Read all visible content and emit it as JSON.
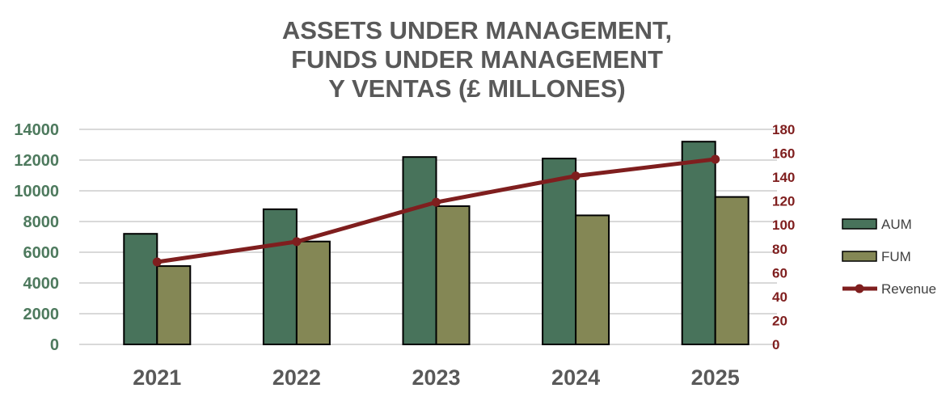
{
  "chart_data": {
    "type": "bar",
    "title_lines": [
      "ASSETS UNDER MANAGEMENT,",
      "FUNDS UNDER MANAGEMENT",
      "Y VENTAS (£ MILLONES)"
    ],
    "categories": [
      "2021",
      "2022",
      "2023",
      "2024",
      "2025"
    ],
    "series": [
      {
        "name": "AUM",
        "type": "bar",
        "axis": "left",
        "color": "#48735B",
        "values": [
          7200,
          8800,
          12200,
          12100,
          13200
        ]
      },
      {
        "name": "FUM",
        "type": "bar",
        "axis": "left",
        "color": "#848755",
        "values": [
          5100,
          6700,
          9000,
          8400,
          9600
        ]
      },
      {
        "name": "Revenue",
        "type": "line",
        "axis": "right",
        "color": "#7F1E1E",
        "values": [
          69,
          86,
          119,
          141,
          155
        ]
      }
    ],
    "left_axis": {
      "min": 0,
      "max": 14000,
      "ticks": [
        "0",
        "2000",
        "4000",
        "6000",
        "8000",
        "10000",
        "12000",
        "14000"
      ],
      "color": "#4E7A5E"
    },
    "right_axis": {
      "min": 0,
      "max": 180,
      "ticks": [
        "0",
        "20",
        "40",
        "60",
        "80",
        "100",
        "120",
        "140",
        "160",
        "180"
      ],
      "color": "#7F1E1E"
    },
    "grid": true,
    "legend": "right"
  }
}
